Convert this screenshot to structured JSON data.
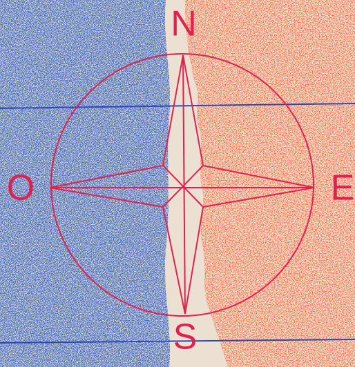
{
  "compass": {
    "north": "N",
    "west": "O",
    "east": "E",
    "south": "S"
  }
}
